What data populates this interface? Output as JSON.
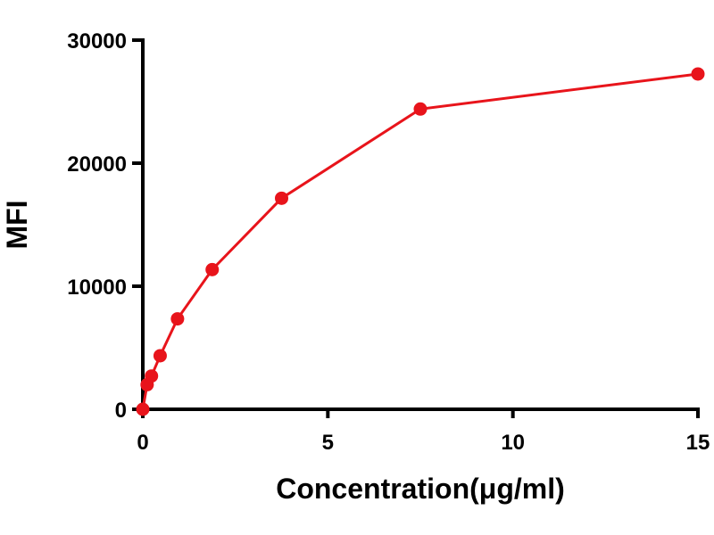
{
  "chart_data": {
    "type": "line",
    "title": "",
    "xlabel": "Concentration(μg/ml)",
    "ylabel": "MFI",
    "xlim": [
      0,
      15
    ],
    "ylim": [
      0,
      30000
    ],
    "xticks": [
      0,
      5,
      10,
      15
    ],
    "yticks": [
      0,
      10000,
      20000,
      30000
    ],
    "xtick_labels": [
      "0",
      "5",
      "10",
      "15"
    ],
    "ytick_labels": [
      "0",
      "10000",
      "20000",
      "30000"
    ],
    "grid": false,
    "series": [
      {
        "name": "MFI",
        "color": "#e8141b",
        "x": [
          0,
          0.117,
          0.234,
          0.469,
          0.9375,
          1.875,
          3.75,
          7.5,
          15
        ],
        "y": [
          0,
          2000,
          2700,
          4350,
          7350,
          11350,
          17150,
          24400,
          27250
        ]
      }
    ]
  }
}
